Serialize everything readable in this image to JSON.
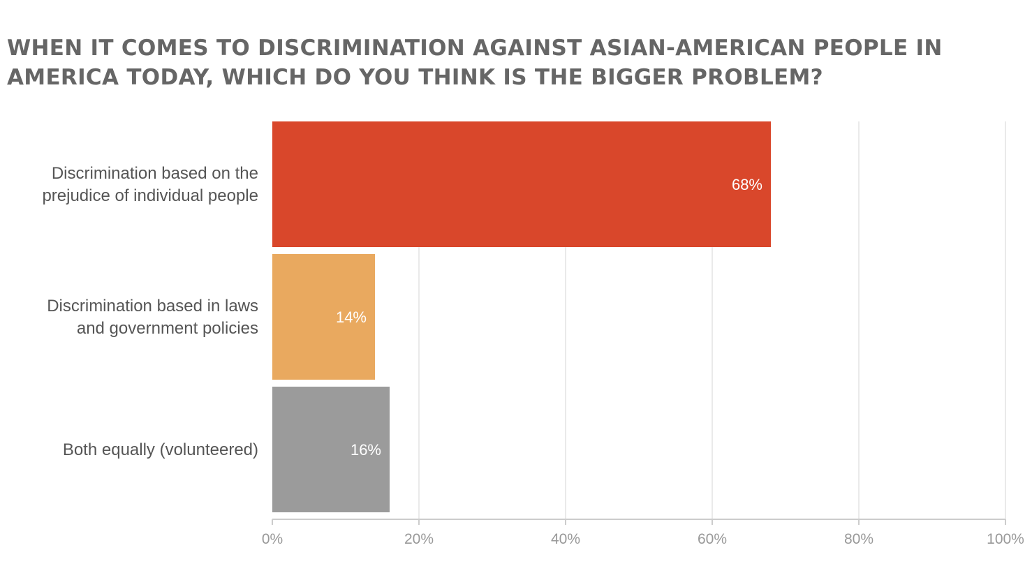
{
  "chart_data": {
    "type": "bar",
    "orientation": "horizontal",
    "title": "WHEN IT COMES TO DISCRIMINATION AGAINST ASIAN-AMERICAN PEOPLE IN AMERICA TODAY, WHICH DO YOU THINK IS THE BIGGER PROBLEM?",
    "categories": [
      [
        "Discrimination based on the",
        "prejudice of individual people"
      ],
      [
        "Discrimination based in laws",
        "and government policies"
      ],
      [
        "Both equally (volunteered)"
      ]
    ],
    "values": [
      68,
      14,
      16
    ],
    "value_labels": [
      "68%",
      "14%",
      "16%"
    ],
    "colors": [
      "#d9472b",
      "#e9a95f",
      "#9b9b9b"
    ],
    "xlim": [
      0,
      100
    ],
    "ticks": [
      0,
      20,
      40,
      60,
      80,
      100
    ],
    "tick_labels": [
      "0%",
      "20%",
      "40%",
      "60%",
      "80%",
      "100%"
    ],
    "grid": true,
    "legend": "none"
  }
}
